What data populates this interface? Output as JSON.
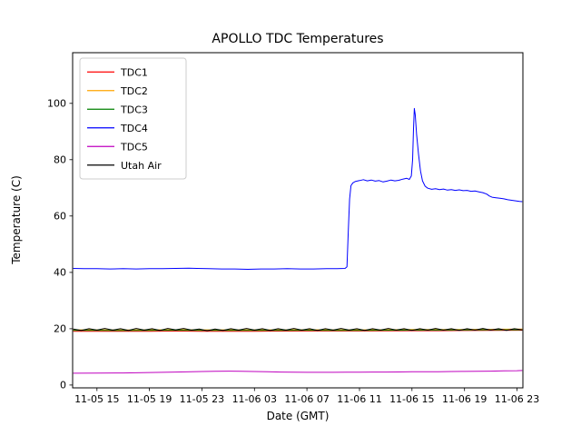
{
  "chart_data": {
    "type": "line",
    "title": "APOLLO TDC Temperatures",
    "xlabel": "Date (GMT)",
    "ylabel": "Temperature (C)",
    "grid": false,
    "legend_position": "upper left",
    "xlim": [
      13.15,
      47.45
    ],
    "ylim": [
      -1,
      118
    ],
    "y_ticks": [
      0,
      20,
      40,
      60,
      80,
      100
    ],
    "x_ticks": [
      15,
      19,
      23,
      27,
      31,
      35,
      39,
      43,
      47
    ],
    "x_tick_labels": [
      "11-05 15",
      "11-05 19",
      "11-05 23",
      "11-06 03",
      "11-06 07",
      "11-06 11",
      "11-06 15",
      "11-06 19",
      "11-06 23"
    ],
    "colors": {
      "background": "#ffffff",
      "axes": "#000000",
      "legend_border": "#cccccc"
    },
    "series": [
      {
        "name": "TDC1",
        "color": "#ff0000",
        "points": [
          [
            13.2,
            19.1
          ],
          [
            15,
            19.1
          ],
          [
            17,
            19.05
          ],
          [
            19,
            19.1
          ],
          [
            21,
            19.15
          ],
          [
            23,
            19.1
          ],
          [
            25,
            19.1
          ],
          [
            27,
            19.1
          ],
          [
            29,
            19.15
          ],
          [
            31,
            19.2
          ],
          [
            33,
            19.2
          ],
          [
            35,
            19.2
          ],
          [
            37,
            19.25
          ],
          [
            39,
            19.3
          ],
          [
            41,
            19.3
          ],
          [
            43,
            19.35
          ],
          [
            45,
            19.4
          ],
          [
            47.4,
            19.45
          ]
        ]
      },
      {
        "name": "TDC2",
        "color": "#ffa500",
        "points": [
          [
            13.2,
            19.6
          ],
          [
            15,
            19.6
          ],
          [
            17,
            19.55
          ],
          [
            19,
            19.6
          ],
          [
            21,
            19.65
          ],
          [
            23,
            19.6
          ],
          [
            25,
            19.6
          ],
          [
            27,
            19.6
          ],
          [
            29,
            19.6
          ],
          [
            31,
            19.65
          ],
          [
            33,
            19.6
          ],
          [
            35,
            19.6
          ],
          [
            37,
            19.65
          ],
          [
            39,
            19.7
          ],
          [
            41,
            19.7
          ],
          [
            43,
            19.75
          ],
          [
            45,
            19.8
          ],
          [
            47.4,
            19.85
          ]
        ]
      },
      {
        "name": "TDC3",
        "color": "#008000",
        "points": [
          [
            13.2,
            19.4
          ],
          [
            15,
            19.4
          ],
          [
            17,
            19.35
          ],
          [
            19,
            19.4
          ],
          [
            21,
            19.45
          ],
          [
            23,
            19.4
          ],
          [
            25,
            19.4
          ],
          [
            27,
            19.4
          ],
          [
            29,
            19.4
          ],
          [
            31,
            19.45
          ],
          [
            33,
            19.4
          ],
          [
            35,
            19.4
          ],
          [
            37,
            19.45
          ],
          [
            39,
            19.5
          ],
          [
            41,
            19.5
          ],
          [
            43,
            19.55
          ],
          [
            45,
            19.6
          ],
          [
            47.4,
            19.6
          ]
        ]
      },
      {
        "name": "TDC4",
        "color": "#0000ff",
        "points": [
          [
            13.2,
            41.4
          ],
          [
            14,
            41.3
          ],
          [
            15,
            41.3
          ],
          [
            16,
            41.2
          ],
          [
            17,
            41.3
          ],
          [
            18,
            41.2
          ],
          [
            19,
            41.3
          ],
          [
            20,
            41.3
          ],
          [
            21,
            41.4
          ],
          [
            22,
            41.5
          ],
          [
            22.6,
            41.4
          ],
          [
            23.5,
            41.3
          ],
          [
            24.5,
            41.2
          ],
          [
            25.5,
            41.2
          ],
          [
            26.5,
            41.1
          ],
          [
            27.5,
            41.2
          ],
          [
            28.5,
            41.2
          ],
          [
            29.5,
            41.3
          ],
          [
            30.5,
            41.2
          ],
          [
            31.5,
            41.2
          ],
          [
            32.5,
            41.3
          ],
          [
            33.3,
            41.3
          ],
          [
            33.9,
            41.4
          ],
          [
            34.05,
            42
          ],
          [
            34.15,
            55
          ],
          [
            34.25,
            66
          ],
          [
            34.35,
            70.8
          ],
          [
            34.5,
            71.8
          ],
          [
            34.7,
            72.3
          ],
          [
            35,
            72.6
          ],
          [
            35.3,
            72.9
          ],
          [
            35.6,
            72.5
          ],
          [
            35.9,
            72.8
          ],
          [
            36.2,
            72.4
          ],
          [
            36.5,
            72.6
          ],
          [
            36.8,
            72.1
          ],
          [
            37.1,
            72.4
          ],
          [
            37.4,
            72.8
          ],
          [
            37.7,
            72.5
          ],
          [
            38,
            72.7
          ],
          [
            38.3,
            73.1
          ],
          [
            38.6,
            73.4
          ],
          [
            38.8,
            73
          ],
          [
            38.95,
            74.2
          ],
          [
            39.05,
            80
          ],
          [
            39.12,
            91
          ],
          [
            39.18,
            98.2
          ],
          [
            39.25,
            96
          ],
          [
            39.35,
            89
          ],
          [
            39.5,
            82
          ],
          [
            39.65,
            76
          ],
          [
            39.8,
            72.5
          ],
          [
            40,
            70.6
          ],
          [
            40.2,
            69.9
          ],
          [
            40.5,
            69.5
          ],
          [
            40.8,
            69.7
          ],
          [
            41.1,
            69.4
          ],
          [
            41.4,
            69.6
          ],
          [
            41.7,
            69.2
          ],
          [
            42,
            69.4
          ],
          [
            42.3,
            69.1
          ],
          [
            42.6,
            69.3
          ],
          [
            42.9,
            69
          ],
          [
            43.2,
            69.1
          ],
          [
            43.5,
            68.8
          ],
          [
            43.8,
            68.9
          ],
          [
            44.1,
            68.6
          ],
          [
            44.4,
            68.3
          ],
          [
            44.7,
            67.8
          ],
          [
            44.9,
            67.1
          ],
          [
            45.1,
            66.7
          ],
          [
            45.4,
            66.5
          ],
          [
            45.7,
            66.3
          ],
          [
            46,
            66.1
          ],
          [
            46.3,
            65.8
          ],
          [
            46.6,
            65.6
          ],
          [
            46.9,
            65.4
          ],
          [
            47.2,
            65.2
          ],
          [
            47.4,
            65.1
          ]
        ]
      },
      {
        "name": "TDC5",
        "color": "#bf00bf",
        "points": [
          [
            13.2,
            4.2
          ],
          [
            15,
            4.25
          ],
          [
            17,
            4.3
          ],
          [
            19,
            4.45
          ],
          [
            21,
            4.6
          ],
          [
            23,
            4.8
          ],
          [
            24,
            4.9
          ],
          [
            25,
            4.95
          ],
          [
            26,
            4.9
          ],
          [
            27,
            4.8
          ],
          [
            28,
            4.7
          ],
          [
            29,
            4.6
          ],
          [
            30,
            4.55
          ],
          [
            31,
            4.5
          ],
          [
            32,
            4.5
          ],
          [
            33,
            4.5
          ],
          [
            34,
            4.55
          ],
          [
            35,
            4.55
          ],
          [
            36,
            4.6
          ],
          [
            37,
            4.6
          ],
          [
            38,
            4.65
          ],
          [
            39,
            4.7
          ],
          [
            40,
            4.7
          ],
          [
            41,
            4.75
          ],
          [
            42,
            4.8
          ],
          [
            43,
            4.85
          ],
          [
            44,
            4.9
          ],
          [
            45,
            4.95
          ],
          [
            46,
            5.05
          ],
          [
            47,
            5.1
          ],
          [
            47.4,
            5.15
          ]
        ]
      },
      {
        "name": "Utah Air",
        "color": "#000000",
        "points": [
          [
            13.2,
            19.9
          ],
          [
            13.8,
            19.4
          ],
          [
            14.4,
            20
          ],
          [
            15,
            19.5
          ],
          [
            15.6,
            20.1
          ],
          [
            16.2,
            19.5
          ],
          [
            16.8,
            20
          ],
          [
            17.4,
            19.4
          ],
          [
            18,
            20.1
          ],
          [
            18.6,
            19.5
          ],
          [
            19.2,
            20
          ],
          [
            19.8,
            19.4
          ],
          [
            20.4,
            20.1
          ],
          [
            21,
            19.6
          ],
          [
            21.6,
            20.1
          ],
          [
            22.2,
            19.5
          ],
          [
            22.8,
            19.9
          ],
          [
            23.4,
            19.3
          ],
          [
            24,
            19.9
          ],
          [
            24.6,
            19.4
          ],
          [
            25.2,
            20
          ],
          [
            25.8,
            19.5
          ],
          [
            26.4,
            20.1
          ],
          [
            27,
            19.5
          ],
          [
            27.6,
            20
          ],
          [
            28.2,
            19.4
          ],
          [
            28.8,
            20
          ],
          [
            29.4,
            19.5
          ],
          [
            30,
            20.1
          ],
          [
            30.6,
            19.5
          ],
          [
            31.2,
            20
          ],
          [
            31.8,
            19.4
          ],
          [
            32.4,
            20
          ],
          [
            33,
            19.5
          ],
          [
            33.6,
            20.1
          ],
          [
            34.2,
            19.5
          ],
          [
            34.8,
            20
          ],
          [
            35.4,
            19.4
          ],
          [
            36,
            20
          ],
          [
            36.6,
            19.5
          ],
          [
            37.2,
            20.1
          ],
          [
            37.8,
            19.5
          ],
          [
            38.4,
            20
          ],
          [
            39,
            19.4
          ],
          [
            39.6,
            20
          ],
          [
            40.2,
            19.5
          ],
          [
            40.8,
            20.1
          ],
          [
            41.4,
            19.5
          ],
          [
            42,
            20
          ],
          [
            42.6,
            19.4
          ],
          [
            43.2,
            20
          ],
          [
            43.8,
            19.5
          ],
          [
            44.4,
            20.1
          ],
          [
            45,
            19.5
          ],
          [
            45.6,
            20
          ],
          [
            46.2,
            19.4
          ],
          [
            46.8,
            20
          ],
          [
            47.4,
            19.6
          ]
        ]
      }
    ]
  }
}
